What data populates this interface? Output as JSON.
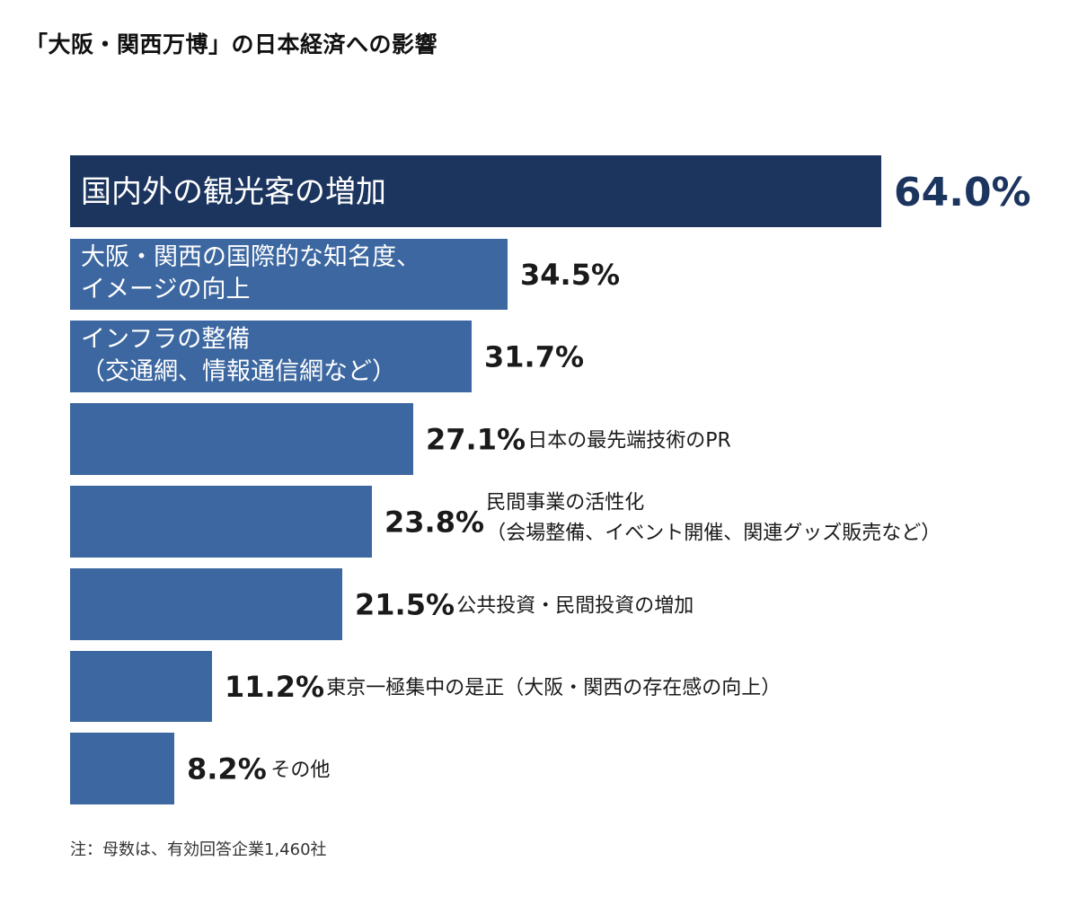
{
  "title": "「大阪・関西万博」の日本経済への影響",
  "note": "注：母数は、有効回答企業1,460社",
  "colors": {
    "top_bar": "#1b355f",
    "bar": "#3c67a0",
    "inner_text": "#ffffff",
    "top_value": "#1b355f",
    "value": "#1a1a1a",
    "category": "#1a1a1a"
  },
  "chart_data": {
    "type": "bar",
    "orientation": "horizontal",
    "title": "「大阪・関西万博」の日本経済への影響",
    "xlabel": "",
    "ylabel": "",
    "unit": "%",
    "xlim": [
      0,
      64.0
    ],
    "categories": [
      [
        "国内外の観光客の増加"
      ],
      [
        "大阪・関西の国際的な知名度、",
        "イメージの向上"
      ],
      [
        "インフラの整備",
        "（交通網、情報通信網など）"
      ],
      [
        "日本の最先端技術のPR"
      ],
      [
        "民間事業の活性化",
        "（会場整備、イベント開催、関連グッズ販売など）"
      ],
      [
        "公共投資・民間投資の増加"
      ],
      [
        "東京一極集中の是正（大阪・関西の存在感の向上）"
      ],
      [
        "その他"
      ]
    ],
    "values": [
      64.0,
      34.5,
      31.7,
      27.1,
      23.8,
      21.5,
      11.2,
      8.2
    ],
    "value_labels": [
      "64.0%",
      "34.5%",
      "31.7%",
      "27.1%",
      "23.8%",
      "21.5%",
      "11.2%",
      "8.2%"
    ],
    "label_inside": [
      true,
      true,
      true,
      false,
      false,
      false,
      false,
      false
    ]
  }
}
